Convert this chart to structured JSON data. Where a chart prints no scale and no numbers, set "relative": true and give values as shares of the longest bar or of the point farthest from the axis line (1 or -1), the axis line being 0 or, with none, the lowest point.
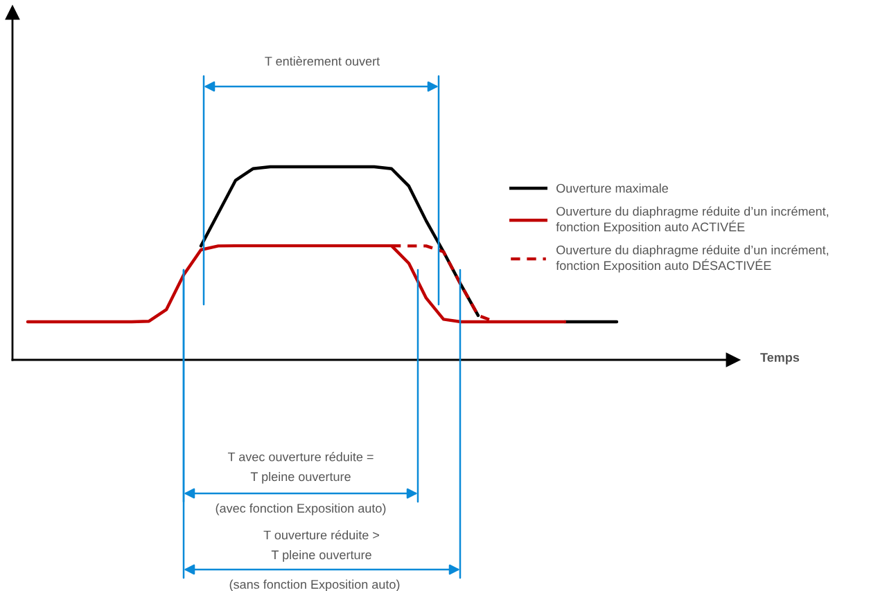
{
  "chart_data": {
    "type": "line",
    "relative": true,
    "legend": "right",
    "categories": [
      null,
      null,
      null,
      null,
      null,
      null,
      null,
      null,
      null,
      null,
      null,
      null,
      null,
      null,
      null,
      null,
      null,
      null,
      null,
      null,
      null,
      null,
      null,
      null,
      null,
      null,
      null,
      null,
      null,
      null,
      null,
      null,
      null,
      null,
      null
    ],
    "series": [
      {
        "name": "Ouverture maximale",
        "color": "#000000",
        "line_style": "solid",
        "values": [
          null,
          null,
          null,
          null,
          null,
          null,
          null,
          null,
          null,
          null,
          0.59,
          0.76,
          0.93,
          0.99,
          1,
          1,
          1,
          1,
          1,
          1,
          1,
          0.99,
          0.9,
          0.72,
          0.56,
          0.39,
          0.23,
          null,
          null,
          null,
          null,
          0.197,
          0.197,
          0.197,
          0.197
        ]
      },
      {
        "name": "Ouverture du diaphragme réduite d’un incrément,\nfonction Exposition auto ACTIVÉE",
        "color": "#c00000",
        "line_style": "solid",
        "values": [
          0.197,
          0.197,
          0.197,
          0.197,
          0.197,
          0.197,
          0.197,
          0.2,
          0.26,
          0.44,
          0.57,
          0.59,
          0.591,
          0.591,
          0.591,
          0.591,
          0.591,
          0.591,
          0.591,
          0.591,
          0.591,
          0.591,
          0.5,
          0.32,
          0.21,
          0.197,
          0.197,
          0.197,
          0.197,
          0.197,
          0.197,
          0.197,
          null,
          null,
          null
        ]
      },
      {
        "name": "Ouverture du diaphragme réduite d’un incrément,\nfonction Exposition auto DÉSACTIVÉE",
        "color": "#c00000",
        "line_style": "dashed",
        "values": [
          null,
          null,
          null,
          null,
          null,
          null,
          null,
          null,
          null,
          null,
          null,
          null,
          null,
          null,
          null,
          null,
          null,
          null,
          null,
          null,
          null,
          0.591,
          0.59,
          0.59,
          0.56,
          0.39,
          0.23,
          0.197,
          null,
          null,
          null,
          null,
          null,
          null,
          null
        ]
      }
    ],
    "annotations": [
      "T entièrement ouvert",
      "T avec ouverture réduite =\nT pleine ouverture",
      "(avec fonction Exposition auto)",
      "T ouverture réduite >\nT pleine ouverture",
      "(sans fonction Exposition auto)",
      "Temps"
    ]
  }
}
